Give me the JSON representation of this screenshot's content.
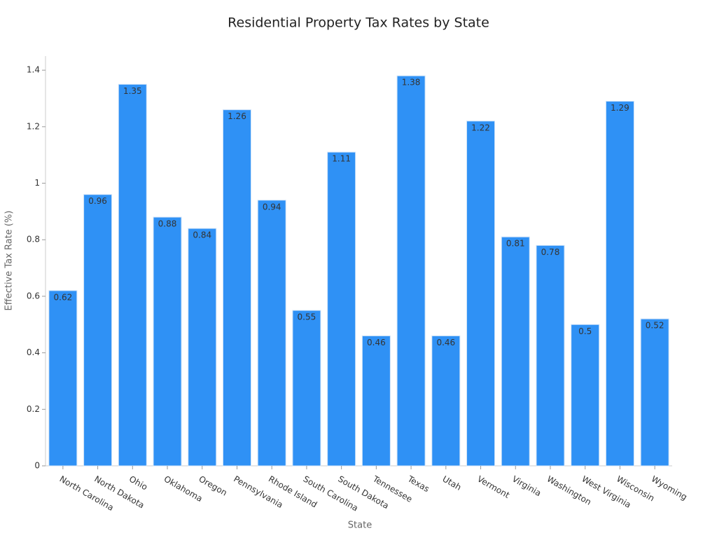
{
  "chart_data": {
    "type": "bar",
    "title": "Residential Property Tax Rates by State",
    "x_label": "State",
    "y_label": "Effective Tax Rate (%)",
    "categories": [
      "North Carolina",
      "North Dakota",
      "Ohio",
      "Oklahoma",
      "Oregon",
      "Pennsylvania",
      "Rhode Island",
      "South Carolina",
      "South Dakota",
      "Tennessee",
      "Texas",
      "Utah",
      "Vermont",
      "Virginia",
      "Washington",
      "West Virginia",
      "Wisconsin",
      "Wyoming"
    ],
    "values": [
      0.62,
      0.96,
      1.35,
      0.88,
      0.84,
      1.26,
      0.94,
      0.55,
      1.11,
      0.46,
      1.38,
      0.46,
      1.22,
      0.81,
      0.78,
      0.5,
      1.29,
      0.52
    ],
    "color": "#2f91f5",
    "ylim": [
      0,
      1.45
    ],
    "yticks": [
      0,
      0.2,
      0.4,
      0.6,
      0.8,
      1,
      1.2,
      1.4
    ],
    "grid": false
  }
}
